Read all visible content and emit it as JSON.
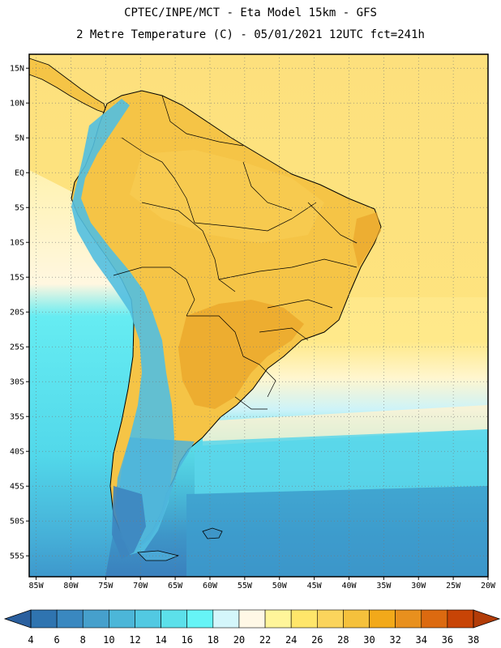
{
  "header": {
    "line1": "CPTEC/INPE/MCT -  Eta Model 15km - GFS",
    "line2": "2 Metre Temperature (C) - 05/01/2021 12UTC fct=241h"
  },
  "map": {
    "lat_ticks": [
      "15N",
      "10N",
      "5N",
      "EQ",
      "5S",
      "10S",
      "15S",
      "20S",
      "25S",
      "30S",
      "35S",
      "40S",
      "45S",
      "50S",
      "55S"
    ],
    "lon_ticks": [
      "85W",
      "80W",
      "75W",
      "70W",
      "65W",
      "60W",
      "55W",
      "50W",
      "45W",
      "40W",
      "35W",
      "30W",
      "25W",
      "20W"
    ],
    "lat_range": [
      17,
      -58
    ],
    "lon_range": [
      -86,
      -20
    ]
  },
  "colorbar": {
    "labels": [
      "4",
      "6",
      "8",
      "10",
      "12",
      "14",
      "16",
      "18",
      "20",
      "22",
      "24",
      "26",
      "28",
      "30",
      "32",
      "34",
      "36",
      "38"
    ],
    "colors": [
      "#2f74b0",
      "#3a88c0",
      "#46a0cc",
      "#4cb6d8",
      "#52c9e2",
      "#5ce0ea",
      "#66f4f6",
      "#d4f6fb",
      "#fff8e6",
      "#fff59a",
      "#ffe66a",
      "#fbd45c",
      "#f5c13c",
      "#f2a91a",
      "#e8901e",
      "#dc6a10",
      "#c84406"
    ],
    "left_arrow_color": "#2a5f9e",
    "right_arrow_color": "#b23c08"
  },
  "colors": {
    "ocean_warm": "#ffe680",
    "ocean_cool": "#5ce3ee",
    "land": "#f5c446",
    "hot": "#e9a42a",
    "andes": "#52c0e0"
  }
}
